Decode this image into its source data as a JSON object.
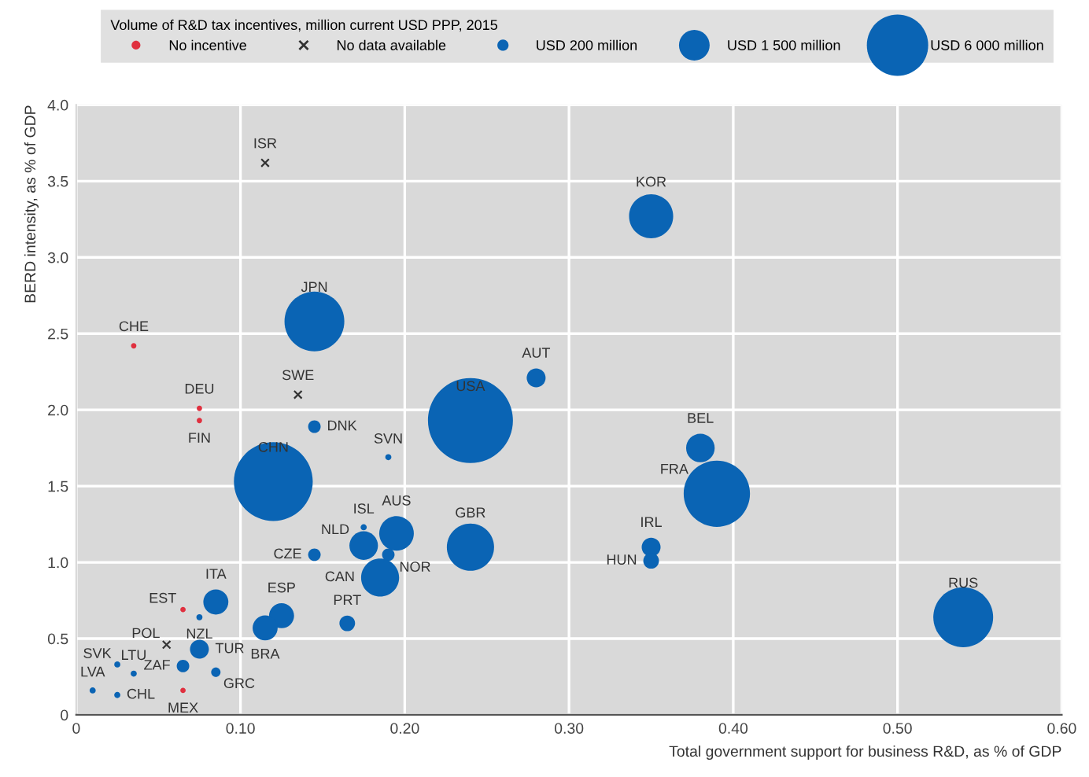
{
  "chart_data": {
    "type": "bubble",
    "xlabel": "Total government support for business R&D, as % of GDP",
    "ylabel": "BERD intensity, as % of GDP",
    "legend_title": "Volume of R&D tax incentives, million current USD PPP, 2015",
    "legend": "top",
    "grid": true,
    "xlim": [
      0,
      0.6
    ],
    "ylim": [
      0,
      4.0
    ],
    "xticks": [
      {
        "value": 0,
        "label": "0"
      },
      {
        "value": 0.1,
        "label": "0.10"
      },
      {
        "value": 0.2,
        "label": "0.20"
      },
      {
        "value": 0.3,
        "label": "0.30"
      },
      {
        "value": 0.4,
        "label": "0.40"
      },
      {
        "value": 0.5,
        "label": "0.50"
      },
      {
        "value": 0.6,
        "label": "0.60"
      }
    ],
    "yticks": [
      {
        "value": 0,
        "label": "0"
      },
      {
        "value": 0.5,
        "label": "0.5"
      },
      {
        "value": 1.0,
        "label": "1.0"
      },
      {
        "value": 1.5,
        "label": "1.5"
      },
      {
        "value": 2.0,
        "label": "2.0"
      },
      {
        "value": 2.5,
        "label": "2.5"
      },
      {
        "value": 3.0,
        "label": "3.0"
      },
      {
        "value": 3.5,
        "label": "3.5"
      },
      {
        "value": 4.0,
        "label": "4.0"
      }
    ],
    "size_legend": [
      {
        "value": 200,
        "label": "USD 200 million"
      },
      {
        "value": 1500,
        "label": "USD 1 500 million"
      },
      {
        "value": 6000,
        "label": "USD 6 000 million"
      }
    ],
    "series": [
      {
        "color": "#0a64b4",
        "marker": "circle",
        "x": [
          0.35,
          0.145,
          0.28,
          0.24,
          0.145,
          0.19,
          0.12,
          0.38,
          0.39,
          0.24,
          0.35,
          0.35,
          0.54,
          0.195,
          0.175,
          0.175,
          0.19,
          0.185,
          0.145,
          0.165,
          0.125,
          0.115,
          0.085,
          0.075,
          0.075,
          0.065,
          0.085,
          0.025,
          0.035,
          0.01,
          0.025
        ],
        "values": [
          3.27,
          2.58,
          2.21,
          1.93,
          1.89,
          1.69,
          1.53,
          1.75,
          1.45,
          1.1,
          1.1,
          1.01,
          0.64,
          1.19,
          1.11,
          1.23,
          1.05,
          0.9,
          1.05,
          0.6,
          0.65,
          0.57,
          0.74,
          0.64,
          0.43,
          0.32,
          0.28,
          0.33,
          0.27,
          0.16,
          0.13
        ],
        "sizes": [
          3100,
          5700,
          570,
          11500,
          250,
          60,
          9900,
          1300,
          7000,
          3550,
          570,
          390,
          5700,
          1900,
          1300,
          60,
          250,
          2300,
          250,
          390,
          1000,
          1000,
          1000,
          60,
          570,
          250,
          140,
          60,
          60,
          60,
          60
        ]
      },
      {
        "type": "scatter",
        "name": "No incentive",
        "color": "#e0303f",
        "marker": "circle",
        "x": [
          0.035,
          0.075,
          0.075,
          0.065,
          0.065
        ],
        "values": [
          2.42,
          2.01,
          1.93,
          0.69,
          0.16
        ]
      },
      {
        "type": "scatter",
        "name": "No data available",
        "color": "#333333",
        "marker": "cross",
        "x": [
          0.115,
          0.135,
          0.055
        ],
        "values": [
          3.62,
          2.1,
          0.46
        ]
      }
    ],
    "annotations": [
      {
        "text": "KOR",
        "x": 0.35,
        "y": 3.27
      },
      {
        "text": "JPN",
        "x": 0.145,
        "y": 2.58
      },
      {
        "text": "AUT",
        "x": 0.28,
        "y": 2.21
      },
      {
        "text": "USA",
        "x": 0.24,
        "y": 1.93
      },
      {
        "text": "DNK",
        "x": 0.145,
        "y": 1.89
      },
      {
        "text": "SVN",
        "x": 0.19,
        "y": 1.69
      },
      {
        "text": "CHN",
        "x": 0.12,
        "y": 1.53
      },
      {
        "text": "BEL",
        "x": 0.38,
        "y": 1.75
      },
      {
        "text": "FRA",
        "x": 0.39,
        "y": 1.45
      },
      {
        "text": "GBR",
        "x": 0.24,
        "y": 1.1
      },
      {
        "text": "IRL",
        "x": 0.35,
        "y": 1.1
      },
      {
        "text": "HUN",
        "x": 0.35,
        "y": 1.01
      },
      {
        "text": "RUS",
        "x": 0.54,
        "y": 0.64
      },
      {
        "text": "AUS",
        "x": 0.195,
        "y": 1.19
      },
      {
        "text": "NLD",
        "x": 0.175,
        "y": 1.11
      },
      {
        "text": "ISL",
        "x": 0.175,
        "y": 1.23
      },
      {
        "text": "NOR",
        "x": 0.19,
        "y": 1.05
      },
      {
        "text": "CAN",
        "x": 0.185,
        "y": 0.9
      },
      {
        "text": "CZE",
        "x": 0.145,
        "y": 1.05
      },
      {
        "text": "PRT",
        "x": 0.165,
        "y": 0.6
      },
      {
        "text": "ESP",
        "x": 0.125,
        "y": 0.65
      },
      {
        "text": "BRA",
        "x": 0.115,
        "y": 0.57
      },
      {
        "text": "ITA",
        "x": 0.085,
        "y": 0.74
      },
      {
        "text": "NZL",
        "x": 0.075,
        "y": 0.64
      },
      {
        "text": "TUR",
        "x": 0.075,
        "y": 0.43
      },
      {
        "text": "ZAF",
        "x": 0.065,
        "y": 0.32
      },
      {
        "text": "GRC",
        "x": 0.085,
        "y": 0.28
      },
      {
        "text": "SVK",
        "x": 0.025,
        "y": 0.33
      },
      {
        "text": "LTU",
        "x": 0.035,
        "y": 0.27
      },
      {
        "text": "LVA",
        "x": 0.01,
        "y": 0.16
      },
      {
        "text": "CHL",
        "x": 0.025,
        "y": 0.13
      },
      {
        "text": "CHE",
        "x": 0.035,
        "y": 2.42
      },
      {
        "text": "DEU",
        "x": 0.075,
        "y": 2.01
      },
      {
        "text": "FIN",
        "x": 0.075,
        "y": 1.93
      },
      {
        "text": "EST",
        "x": 0.065,
        "y": 0.69
      },
      {
        "text": "MEX",
        "x": 0.065,
        "y": 0.16
      },
      {
        "text": "ISR",
        "x": 0.115,
        "y": 3.62
      },
      {
        "text": "SWE",
        "x": 0.135,
        "y": 2.1
      },
      {
        "text": "POL",
        "x": 0.055,
        "y": 0.46
      }
    ]
  }
}
